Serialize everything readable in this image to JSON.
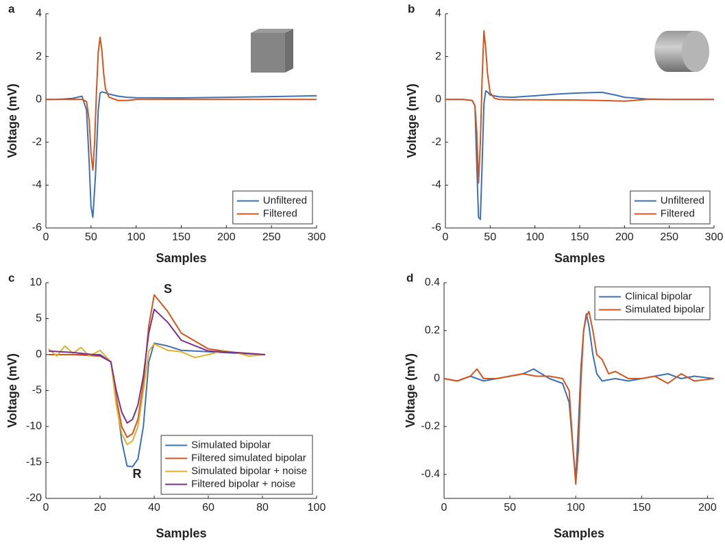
{
  "chart_data": [
    {
      "type": "line",
      "label": "a",
      "xlabel": "Samples",
      "ylabel": "Voltage (mV)",
      "xlim": [
        0,
        300
      ],
      "ylim": [
        -6,
        4
      ],
      "xticks": [
        0,
        50,
        100,
        150,
        200,
        250,
        300
      ],
      "yticks": [
        -6,
        -4,
        -2,
        0,
        2,
        4
      ],
      "legend": "lower right",
      "series": [
        {
          "name": "Unfiltered",
          "color": "#3b6fb6",
          "x": [
            0,
            10,
            20,
            30,
            40,
            45,
            48,
            50,
            52,
            55,
            58,
            60,
            62,
            65,
            70,
            80,
            90,
            100,
            150,
            200,
            250,
            300
          ],
          "values": [
            0,
            0,
            0.02,
            0.05,
            0.15,
            -0.5,
            -3,
            -5,
            -5.5,
            -3.5,
            -0.5,
            0.3,
            0.35,
            0.32,
            0.25,
            0.15,
            0.1,
            0.08,
            0.07,
            0.1,
            0.13,
            0.17
          ]
        },
        {
          "name": "Filtered",
          "color": "#d4541b",
          "x": [
            0,
            10,
            20,
            30,
            40,
            45,
            48,
            50,
            52,
            54,
            56,
            58,
            60,
            62,
            64,
            66,
            70,
            80,
            90,
            100,
            150,
            200,
            250,
            300
          ],
          "values": [
            0,
            0,
            0,
            0,
            0,
            -0.1,
            -1,
            -2.5,
            -3.3,
            -2,
            0.3,
            2.2,
            2.9,
            2.3,
            1.2,
            0.5,
            0.1,
            -0.05,
            -0.05,
            0,
            0,
            0,
            0,
            0
          ]
        }
      ]
    },
    {
      "type": "line",
      "label": "b",
      "xlabel": "Samples",
      "ylabel": "Voltage (mV)",
      "xlim": [
        0,
        300
      ],
      "ylim": [
        -6,
        4
      ],
      "xticks": [
        0,
        50,
        100,
        150,
        200,
        250,
        300
      ],
      "yticks": [
        -6,
        -4,
        -2,
        0,
        2,
        4
      ],
      "legend": "lower right",
      "series": [
        {
          "name": "Unfiltered",
          "color": "#3b6fb6",
          "x": [
            0,
            20,
            30,
            33,
            35,
            37,
            39,
            41,
            43,
            45,
            47,
            50,
            60,
            75,
            100,
            125,
            150,
            175,
            190,
            200,
            225,
            250,
            300
          ],
          "values": [
            0,
            0,
            -0.05,
            -0.3,
            -3,
            -5.5,
            -5.6,
            -3,
            -0.2,
            0.4,
            0.35,
            0.2,
            0.12,
            0.1,
            0.17,
            0.25,
            0.3,
            0.33,
            0.2,
            0.1,
            0.02,
            0,
            0
          ]
        },
        {
          "name": "Filtered",
          "color": "#d4541b",
          "x": [
            0,
            20,
            30,
            33,
            35,
            37,
            39,
            41,
            43,
            45,
            47,
            50,
            55,
            60,
            75,
            100,
            150,
            200,
            225,
            250,
            300
          ],
          "values": [
            0,
            0,
            -0.05,
            -0.3,
            -1.5,
            -3.9,
            -2,
            1,
            3.2,
            2.4,
            1.2,
            0.3,
            0.05,
            0,
            -0.02,
            -0.02,
            -0.03,
            -0.08,
            0,
            0,
            0
          ]
        }
      ]
    },
    {
      "type": "line",
      "label": "c",
      "xlabel": "Samples",
      "ylabel": "Voltage (mV)",
      "xlim": [
        0,
        100
      ],
      "ylim": [
        -20,
        10
      ],
      "xticks": [
        0,
        20,
        40,
        60,
        80,
        100
      ],
      "yticks": [
        -20,
        -15,
        -10,
        -5,
        0,
        5,
        10
      ],
      "legend": "lower right",
      "annotations": [
        "S",
        "R"
      ],
      "series": [
        {
          "name": "Simulated bipolar",
          "color": "#3b6fb6",
          "x": [
            1,
            10,
            20,
            24,
            26,
            28,
            30,
            32,
            34,
            36,
            38,
            40,
            45,
            50,
            60,
            70,
            81
          ],
          "values": [
            0,
            0,
            0,
            -1,
            -6,
            -12,
            -15.5,
            -15.6,
            -14.5,
            -10,
            -1,
            1.6,
            1.2,
            0.6,
            0.4,
            0.2,
            0
          ]
        },
        {
          "name": "Filtered simulated bipolar",
          "color": "#d4541b",
          "x": [
            1,
            10,
            20,
            24,
            26,
            28,
            30,
            32,
            34,
            36,
            38,
            40,
            45,
            50,
            60,
            70,
            81
          ],
          "values": [
            0,
            0,
            -0.2,
            -1,
            -6,
            -10,
            -11.5,
            -11,
            -9,
            -4,
            4,
            8.3,
            6,
            3,
            0.8,
            0.3,
            0
          ]
        },
        {
          "name": "Simulated bipolar + noise",
          "color": "#e0b02a",
          "x": [
            1,
            4,
            7,
            10,
            13,
            16,
            20,
            24,
            26,
            28,
            30,
            32,
            34,
            36,
            38,
            40,
            45,
            50,
            55,
            60,
            65,
            70,
            75,
            81
          ],
          "values": [
            0.8,
            -0.2,
            1.2,
            0.2,
            1,
            -0.2,
            0.6,
            -1,
            -7,
            -11,
            -12.5,
            -12,
            -10,
            -5,
            0.5,
            1.5,
            0.6,
            0.4,
            -0.4,
            0,
            0.5,
            0.3,
            -0.2,
            0
          ]
        },
        {
          "name": "Filtered bipolar + noise",
          "color": "#7a2f8c",
          "x": [
            1,
            10,
            20,
            24,
            26,
            28,
            30,
            32,
            34,
            36,
            38,
            40,
            45,
            50,
            60,
            70,
            81
          ],
          "values": [
            0.5,
            0.3,
            -0.1,
            -1,
            -5,
            -8,
            -9.5,
            -9,
            -7,
            -3,
            3,
            6.3,
            4.5,
            2,
            0.5,
            0.3,
            0
          ]
        }
      ]
    },
    {
      "type": "line",
      "label": "d",
      "xlabel": "Samples",
      "ylabel": "Voltage (mV)",
      "xlim": [
        0,
        205
      ],
      "ylim": [
        -0.5,
        0.4
      ],
      "xticks": [
        0,
        50,
        100,
        150,
        200
      ],
      "yticks": [
        -0.4,
        -0.2,
        0,
        0.2,
        0.4
      ],
      "legend": "upper right",
      "series": [
        {
          "name": "Clinical bipolar",
          "color": "#3b6fb6",
          "x": [
            0,
            10,
            20,
            30,
            40,
            50,
            60,
            68,
            80,
            90,
            95,
            98,
            100,
            102,
            104,
            106,
            108,
            110,
            113,
            116,
            120,
            130,
            140,
            150,
            160,
            170,
            180,
            190,
            205
          ],
          "values": [
            0,
            -0.01,
            0.01,
            -0.01,
            0,
            0.01,
            0.02,
            0.04,
            0,
            -0.02,
            -0.1,
            -0.3,
            -0.42,
            -0.2,
            0.05,
            0.2,
            0.27,
            0.22,
            0.1,
            0.02,
            -0.01,
            0,
            -0.01,
            0,
            0.01,
            0.02,
            0,
            0.01,
            0
          ]
        },
        {
          "name": "Simulated bipolar",
          "color": "#d4541b",
          "x": [
            0,
            10,
            20,
            25,
            30,
            40,
            50,
            60,
            70,
            80,
            90,
            95,
            98,
            100,
            102,
            104,
            106,
            108,
            110,
            113,
            116,
            120,
            125,
            130,
            140,
            150,
            160,
            170,
            180,
            190,
            205
          ],
          "values": [
            0,
            -0.01,
            0.01,
            0.04,
            0,
            0,
            0.01,
            0.02,
            0.01,
            0.01,
            0,
            -0.05,
            -0.3,
            -0.44,
            -0.3,
            0,
            0.2,
            0.26,
            0.28,
            0.2,
            0.1,
            0.08,
            0.02,
            0.03,
            0,
            0,
            0.01,
            -0.02,
            0.02,
            -0.01,
            0
          ]
        }
      ]
    }
  ]
}
